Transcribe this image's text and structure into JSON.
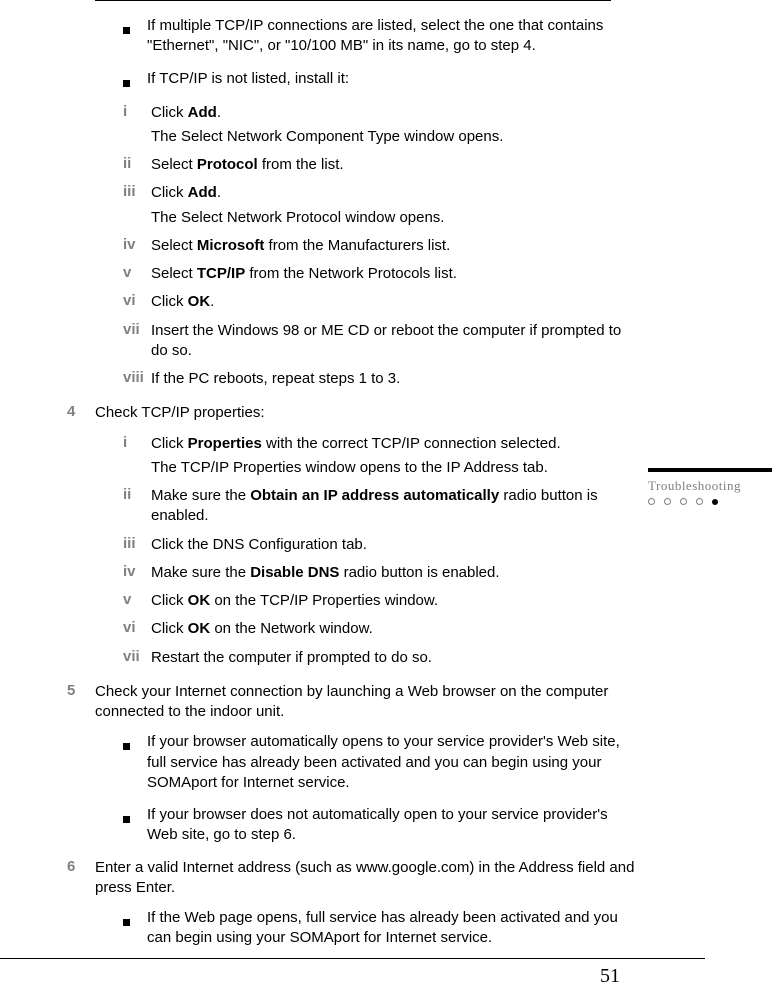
{
  "page_number": "51",
  "side_tab": "Troubleshooting",
  "bullets_top": [
    "If multiple TCP/IP connections are listed, select the one that contains \"Ethernet\", \"NIC\", or \"10/100 MB\" in its name, go to step 4.",
    "If TCP/IP is not listed, install it:"
  ],
  "roman_top": [
    {
      "n": "i",
      "pre": "Click ",
      "bold": "Add",
      "post": ".",
      "sub": "The Select Network Component Type window opens."
    },
    {
      "n": "ii",
      "pre": "Select ",
      "bold": "Protocol",
      "post": " from the list."
    },
    {
      "n": "iii",
      "pre": "Click ",
      "bold": "Add",
      "post": ".",
      "sub": "The Select Network Protocol window opens."
    },
    {
      "n": "iv",
      "pre": "Select ",
      "bold": "Microsoft",
      "post": " from the Manufacturers list."
    },
    {
      "n": "v",
      "pre": "Select ",
      "bold": "TCP/IP",
      "post": " from the Network Protocols list."
    },
    {
      "n": "vi",
      "pre": "Click ",
      "bold": "OK",
      "post": "."
    },
    {
      "n": "vii",
      "plain": "Insert the Windows 98 or ME CD or reboot the computer if prompted to do so."
    },
    {
      "n": "viii",
      "plain": "If the PC reboots, repeat steps 1 to 3."
    }
  ],
  "step4_label": "4",
  "step4_text": "Check TCP/IP properties:",
  "roman_step4": [
    {
      "n": "i",
      "pre": "Click ",
      "bold": "Properties",
      "post": " with the correct TCP/IP connection selected.",
      "sub": "The TCP/IP Properties window opens to the IP Address tab."
    },
    {
      "n": "ii",
      "pre": "Make sure the ",
      "bold": "Obtain an IP address automatically",
      "post": " radio button is enabled."
    },
    {
      "n": "iii",
      "plain": "Click the DNS Configuration tab."
    },
    {
      "n": "iv",
      "pre": "Make sure the ",
      "bold": "Disable DNS",
      "post": " radio button is enabled."
    },
    {
      "n": "v",
      "pre": "Click ",
      "bold": "OK",
      "post": " on the TCP/IP Properties window."
    },
    {
      "n": "vi",
      "pre": "Click ",
      "bold": "OK",
      "post": " on the Network window."
    },
    {
      "n": "vii",
      "plain": "Restart the computer if prompted to do so."
    }
  ],
  "step5_label": "5",
  "step5_text": "Check your Internet connection by launching a Web browser on the computer connected to the indoor unit.",
  "step5_bullets": [
    "If your browser automatically opens to your service provider's Web site, full service has already been activated and you can begin using your SOMAport for Internet service.",
    "If your browser does not automatically open to your service provider's Web site, go to step 6."
  ],
  "step6_label": "6",
  "step6_text": "Enter a valid Internet address (such as www.google.com) in the Address field and press Enter.",
  "step6_bullets": [
    "If the Web page opens, full service has already been activated and you can begin using your SOMAport for Internet service."
  ]
}
